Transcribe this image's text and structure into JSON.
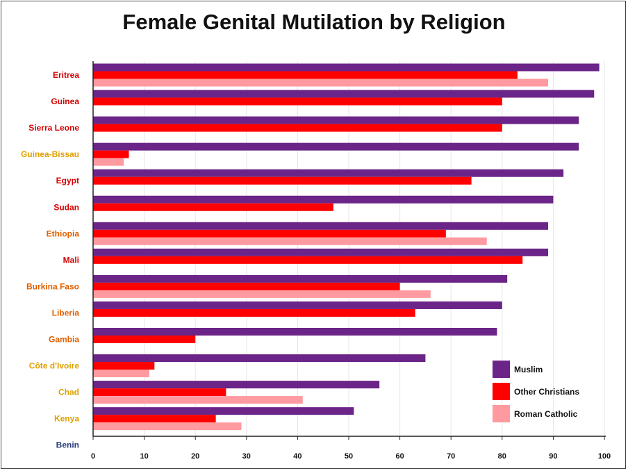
{
  "chart_data": {
    "type": "bar",
    "orientation": "horizontal",
    "title": "Female Genital Mutilation by Religion",
    "xlabel": "",
    "ylabel": "",
    "xlim": [
      0,
      100
    ],
    "xticks": [
      "0",
      "10",
      "20",
      "30",
      "40",
      "50",
      "60",
      "70",
      "80",
      "90",
      "100"
    ],
    "grid": true,
    "legend_position": "bottom-right",
    "categories": [
      "Eritrea",
      "Guinea",
      "Sierra Leone",
      "Guinea-Bissau",
      "Egypt",
      "Sudan",
      "Ethiopia",
      "Mali",
      "Burkina Faso",
      "Liberia",
      "Gambia",
      "Côte d'Ivoire",
      "Chad",
      "Kenya",
      "Benin"
    ],
    "category_colors": [
      "#d40000",
      "#d40000",
      "#d40000",
      "#e0a000",
      "#d40000",
      "#d40000",
      "#e06000",
      "#d40000",
      "#e06000",
      "#e06000",
      "#e06000",
      "#e0a000",
      "#e0a000",
      "#e0a000",
      "#2a3f7a"
    ],
    "series": [
      {
        "name": "Muslim",
        "color": "#6b2487",
        "values": [
          99,
          98,
          95,
          95,
          92,
          90,
          89,
          89,
          81,
          80,
          79,
          65,
          56,
          51,
          null
        ]
      },
      {
        "name": "Other Christians",
        "color": "#ff0000",
        "values": [
          83,
          80,
          80,
          7,
          74,
          47,
          69,
          84,
          60,
          63,
          20,
          12,
          26,
          24,
          null
        ]
      },
      {
        "name": "Roman Catholic",
        "color": "#ff9aa0",
        "values": [
          89,
          null,
          null,
          6,
          null,
          null,
          77,
          null,
          66,
          null,
          null,
          11,
          41,
          29,
          null
        ]
      }
    ]
  }
}
